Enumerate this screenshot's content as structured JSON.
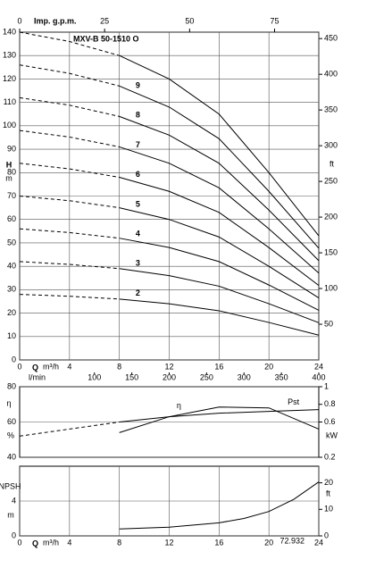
{
  "chart_data": [
    {
      "type": "line",
      "title": "MXV-B 50-1510 O",
      "x_label": "Q",
      "x_unit": "m³/h",
      "x2_label": "Imp. g.p.m.",
      "x3_label": "l/min",
      "y_label": "H",
      "y_unit": "m",
      "y2_unit": "ft",
      "x": [
        0,
        4,
        8,
        12,
        16,
        20,
        24
      ],
      "dashed_until": 8,
      "color": "#000000",
      "grid": true,
      "series": [
        {
          "name": "2",
          "values": [
            28,
            27.2,
            26,
            24,
            21,
            16,
            10.6
          ]
        },
        {
          "name": "3",
          "values": [
            42,
            40.8,
            39,
            36,
            31.5,
            24,
            15.9
          ]
        },
        {
          "name": "4",
          "values": [
            56,
            54.4,
            52,
            48,
            42,
            32,
            21.2
          ]
        },
        {
          "name": "5",
          "values": [
            70,
            68,
            65,
            60,
            52.5,
            40,
            26.5
          ]
        },
        {
          "name": "6",
          "values": [
            84,
            81.6,
            78,
            72,
            63,
            48,
            31.8
          ]
        },
        {
          "name": "7",
          "values": [
            98,
            95.2,
            91,
            84,
            73.5,
            56,
            37.1
          ]
        },
        {
          "name": "8",
          "values": [
            112,
            108.8,
            104,
            96,
            84,
            64,
            42.4
          ]
        },
        {
          "name": "9",
          "values": [
            126,
            122.4,
            117,
            108,
            94.5,
            72,
            47.7
          ]
        },
        {
          "values": [
            140,
            136,
            130,
            120,
            105,
            80,
            53
          ]
        }
      ],
      "xlim": [
        0,
        24
      ],
      "xticks": [
        0,
        4,
        8,
        12,
        16,
        20,
        24
      ],
      "x2lim": [
        0,
        88
      ],
      "x2ticks": [
        0,
        25,
        50,
        75
      ],
      "x3lim": [
        0,
        400
      ],
      "x3ticks": [
        100,
        150,
        200,
        250,
        300,
        350,
        400
      ],
      "ylim": [
        0,
        140
      ],
      "yticks": [
        0,
        10,
        20,
        30,
        40,
        50,
        60,
        70,
        80,
        90,
        100,
        110,
        120,
        130,
        140
      ],
      "y2lim": [
        0,
        459
      ],
      "y2ticks": [
        50,
        100,
        150,
        200,
        250,
        300,
        350,
        400,
        450
      ]
    },
    {
      "type": "line",
      "y_label": "η",
      "y_unit": "%",
      "y2_unit": "kW",
      "x": [
        0,
        4,
        8,
        12,
        16,
        20,
        24
      ],
      "dashed_until": 8,
      "color": "#000000",
      "grid": true,
      "series": [
        {
          "name": "η",
          "values": [
            null,
            null,
            54,
            63,
            68.5,
            68,
            56
          ]
        },
        {
          "name": "Pst",
          "axis": "y2",
          "values": [
            0.44,
            0.52,
            0.6,
            0.66,
            0.7,
            0.72,
            0.74
          ]
        }
      ],
      "xlim": [
        0,
        24
      ],
      "ylim": [
        40,
        80
      ],
      "yticks": [
        40,
        60,
        80
      ],
      "y2lim": [
        0.2,
        1.0
      ],
      "y2ticks": [
        0.2,
        0.6,
        0.8,
        1.0
      ]
    },
    {
      "type": "line",
      "x_label": "Q",
      "x_unit": "m³/h",
      "y_label": "NPSH",
      "y_unit": "m",
      "y2_unit": "ft",
      "footnote": "72.932",
      "color": "#000000",
      "grid": true,
      "x": [
        8,
        12,
        16,
        18,
        20,
        22,
        24
      ],
      "series": [
        {
          "values": [
            0.8,
            1.0,
            1.5,
            2,
            2.8,
            4.2,
            6.2
          ]
        }
      ],
      "xlim": [
        0,
        24
      ],
      "xticks": [
        0,
        4,
        8,
        12,
        16,
        20,
        24
      ],
      "ylim": [
        0,
        8
      ],
      "yticks": [
        0,
        4
      ],
      "y2lim": [
        0,
        26.25
      ],
      "y2ticks": [
        0,
        10,
        20
      ]
    }
  ]
}
